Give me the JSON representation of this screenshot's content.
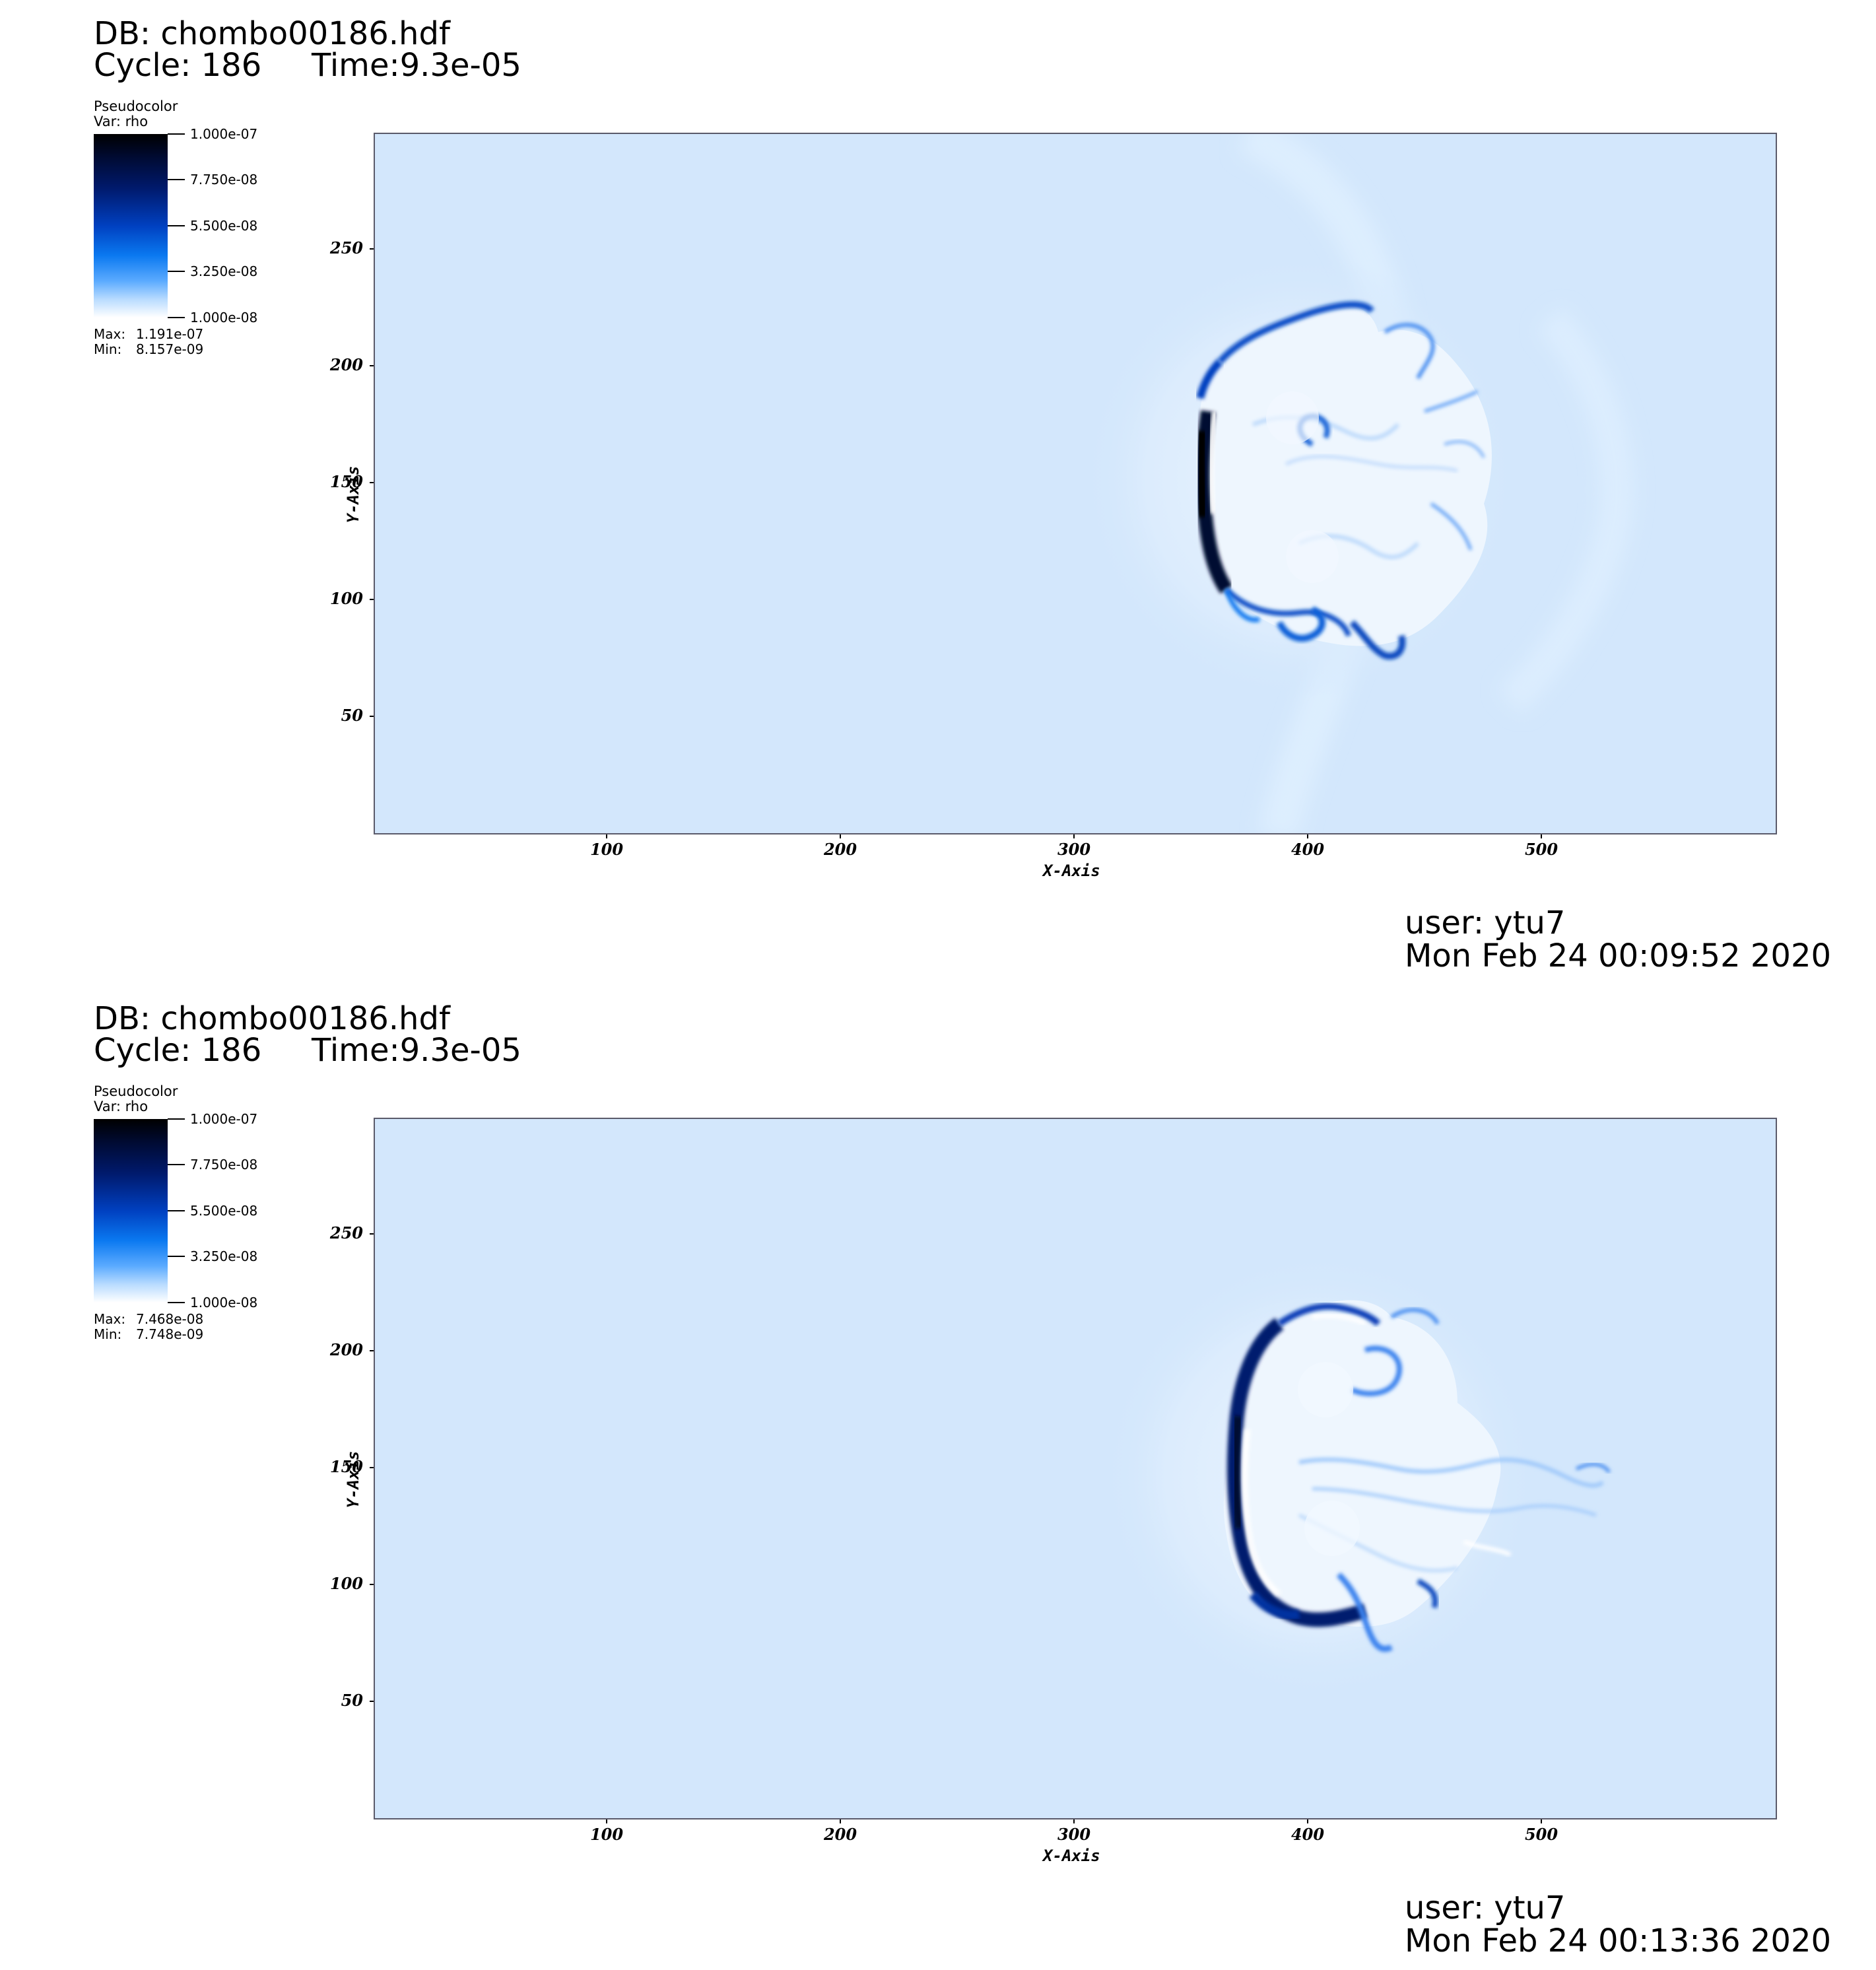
{
  "panels": [
    {
      "db": "DB: chombo00186.hdf",
      "cycle": "Cycle: 186",
      "time": "Time:9.3e-05",
      "legend": {
        "title": "Pseudocolor",
        "var": "Var: rho",
        "ticks": [
          "1.000e-07",
          "7.750e-08",
          "5.500e-08",
          "3.250e-08",
          "1.000e-08"
        ],
        "max_label": "Max:",
        "max_value": "1.191e-07",
        "min_label": "Min:",
        "min_value": "8.157e-09"
      },
      "y_ticks": [
        "250",
        "200",
        "150",
        "100",
        "50"
      ],
      "x_ticks": [
        "100",
        "200",
        "300",
        "400",
        "500"
      ],
      "y_axis_title": "Y-Axis",
      "x_axis_title": "X-Axis",
      "user": "user: ytu7",
      "date": "Mon Feb 24 00:09:52 2020"
    },
    {
      "db": "DB: chombo00186.hdf",
      "cycle": "Cycle: 186",
      "time": "Time:9.3e-05",
      "legend": {
        "title": "Pseudocolor",
        "var": "Var: rho",
        "ticks": [
          "1.000e-07",
          "7.750e-08",
          "5.500e-08",
          "3.250e-08",
          "1.000e-08"
        ],
        "max_label": "Max:",
        "max_value": "7.468e-08",
        "min_label": "Min:",
        "min_value": "7.748e-09"
      },
      "y_ticks": [
        "250",
        "200",
        "150",
        "100",
        "50"
      ],
      "x_ticks": [
        "100",
        "200",
        "300",
        "400",
        "500"
      ],
      "y_axis_title": "Y-Axis",
      "x_axis_title": "X-Axis",
      "user": "user: ytu7",
      "date": "Mon Feb 24 00:13:36 2020"
    }
  ],
  "colors": {
    "background_field": "#d3e7fc",
    "plot_border": "#5a5a6a",
    "colormap_dark": "#000000",
    "colormap_mid": "#0a78f0",
    "colormap_light": "#ffffff"
  }
}
